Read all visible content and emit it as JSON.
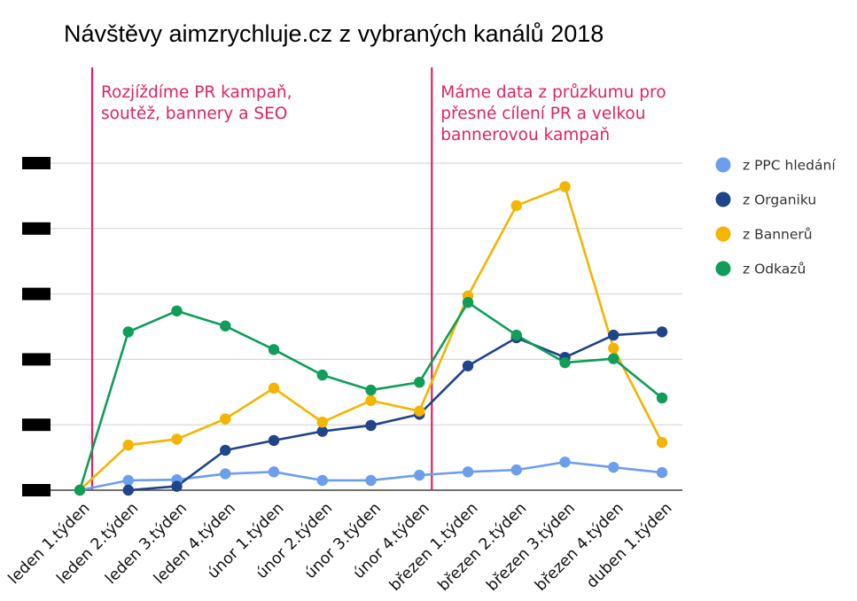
{
  "chart_data": {
    "type": "line",
    "title": "Návštěvy aimzrychluje.cz z vybraných kanálů 2018",
    "xlabel": "",
    "ylabel": "",
    "ylim": [
      0,
      50
    ],
    "y_ticks": [
      0,
      10,
      20,
      30,
      40,
      50
    ],
    "y_tick_labels_redacted": true,
    "grid": true,
    "legend_position": "right",
    "categories": [
      "leden 1.týden",
      "leden 2.týden",
      "leden 3.týden",
      "leden 4.týden",
      "únor 1.týden",
      "únor 2.týden",
      "únor 3.týden",
      "únor 4.týden",
      "březen 1.týden",
      "březen 2.týden",
      "březen 3.týden",
      "březen 4.týden",
      "duben 1.týden"
    ],
    "series": [
      {
        "name": "z PPC hledání",
        "color": "#6d9eeb",
        "values": [
          0,
          1.5,
          1.6,
          2.5,
          2.8,
          1.5,
          1.5,
          2.3,
          2.8,
          3.1,
          4.3,
          3.5,
          2.7
        ]
      },
      {
        "name": "z Organiku",
        "color": "#1f4489",
        "values": [
          null,
          0,
          0.6,
          6.1,
          7.6,
          9.0,
          9.9,
          11.6,
          19.0,
          23.3,
          20.3,
          23.7,
          24.2
        ]
      },
      {
        "name": "z Bannerů",
        "color": "#f4b400",
        "values": [
          0,
          6.9,
          7.8,
          10.9,
          15.6,
          10.4,
          13.7,
          12.1,
          29.7,
          43.5,
          46.4,
          21.7,
          7.3
        ]
      },
      {
        "name": "z Odkazů",
        "color": "#0f9d58",
        "values": [
          0,
          24.2,
          27.4,
          25.1,
          21.5,
          17.6,
          15.3,
          16.5,
          28.7,
          23.7,
          19.5,
          20.1,
          14.1
        ]
      }
    ],
    "annotations": [
      {
        "at_category": "leden 1.týden",
        "color": "#e0245e",
        "lines": [
          "Rozjíždíme PR kampaň,",
          "soutěž, bannery a SEO"
        ]
      },
      {
        "at_category": "únor 4.týden",
        "color": "#e0245e",
        "lines": [
          "Máme data z průzkumu pro",
          "přesné cílení PR a velkou",
          "bannerovou kampaň"
        ]
      }
    ]
  }
}
